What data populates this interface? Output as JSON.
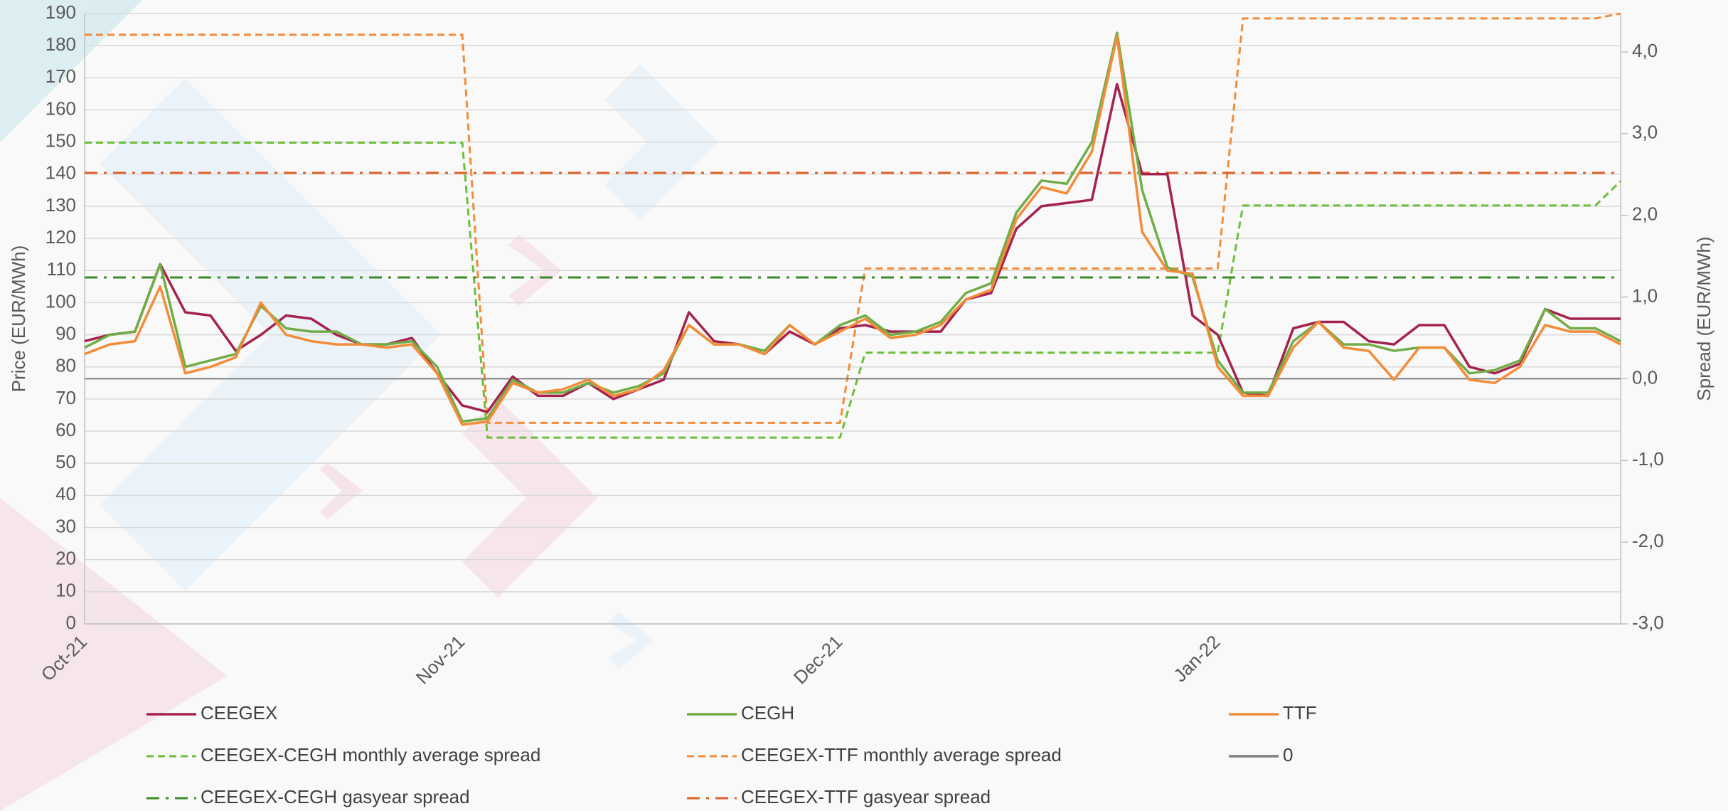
{
  "chart_data": {
    "type": "line",
    "y_label": "Price (EUR/MWh)",
    "y2_label": "Spread (EUR/MWh)",
    "categories": [
      "Oct-21",
      null,
      null,
      null,
      null,
      null,
      null,
      null,
      null,
      null,
      null,
      null,
      null,
      null,
      null,
      "Nov-21",
      null,
      null,
      null,
      null,
      null,
      null,
      null,
      null,
      null,
      null,
      null,
      null,
      null,
      null,
      "Dec-21",
      null,
      null,
      null,
      null,
      null,
      null,
      null,
      null,
      null,
      null,
      null,
      null,
      null,
      null,
      "Jan-22",
      null,
      null,
      null,
      null,
      null,
      null,
      null,
      null,
      null,
      null,
      null,
      null,
      null,
      null,
      null,
      null
    ],
    "ylim": [
      0,
      190
    ],
    "yticks": [
      0,
      10,
      20,
      30,
      40,
      50,
      60,
      70,
      80,
      90,
      100,
      110,
      120,
      130,
      140,
      150,
      160,
      170,
      180,
      190
    ],
    "y2lim": [
      -3,
      4.47
    ],
    "y2ticks": [
      {
        "value": -3,
        "label": "-3,0"
      },
      {
        "value": -2,
        "label": "-2,0"
      },
      {
        "value": -1,
        "label": "-1,0"
      },
      {
        "value": 0,
        "label": "0,0"
      },
      {
        "value": 1,
        "label": "1,0"
      },
      {
        "value": 2,
        "label": "2,0"
      },
      {
        "value": 3,
        "label": "3,0"
      },
      {
        "value": 4,
        "label": "4,0"
      }
    ],
    "grid": true,
    "legend": "bottom",
    "series": [
      {
        "name": "CEEGEX",
        "color": "#a4224e",
        "line_style": "solid",
        "values": [
          88,
          90,
          91,
          112,
          97,
          96,
          85,
          90,
          96,
          95,
          90,
          87,
          87,
          89,
          78,
          68,
          66,
          77,
          71,
          71,
          75,
          70,
          73,
          76,
          97,
          88,
          87,
          84,
          91,
          87,
          92,
          93,
          91,
          91,
          91,
          101,
          103,
          123,
          130,
          131,
          132,
          168,
          140,
          140,
          96,
          90,
          72,
          71,
          92,
          94,
          94,
          88,
          87,
          93,
          93,
          80,
          78,
          81,
          98,
          95,
          95,
          95
        ]
      },
      {
        "name": "CEGH",
        "color": "#70ad47",
        "line_style": "solid",
        "values": [
          86,
          90,
          91,
          112,
          80,
          82,
          84,
          99,
          92,
          91,
          91,
          87,
          87,
          88,
          80,
          63,
          64,
          76,
          72,
          72,
          75,
          72,
          74,
          78,
          93,
          87,
          87,
          85,
          93,
          87,
          93,
          96,
          90,
          91,
          94,
          103,
          106,
          128,
          138,
          137,
          150,
          184,
          135,
          111,
          108,
          82,
          72,
          72,
          88,
          94,
          87,
          87,
          85,
          86,
          86,
          78,
          79,
          82,
          98,
          92,
          92,
          88
        ]
      },
      {
        "name": "TTF",
        "color": "#f28c38",
        "line_style": "solid",
        "values": [
          84,
          87,
          88,
          105,
          78,
          80,
          83,
          100,
          90,
          88,
          87,
          87,
          86,
          87,
          78,
          62,
          63,
          75,
          72,
          73,
          76,
          71,
          73,
          79,
          93,
          87,
          87,
          84,
          93,
          87,
          91,
          95,
          89,
          90,
          93,
          101,
          104,
          126,
          136,
          134,
          147,
          183,
          122,
          110,
          109,
          80,
          71,
          71,
          86,
          94,
          86,
          85,
          76,
          86,
          86,
          76,
          75,
          80,
          93,
          91,
          91,
          87
        ]
      },
      {
        "name": "CEEGEX-CEGH monthly average spread",
        "color": "#6cbf3a",
        "line_style": "dashed",
        "axis": "y2",
        "values": [
          2.89,
          2.89,
          2.89,
          2.89,
          2.89,
          2.89,
          2.89,
          2.89,
          2.89,
          2.89,
          2.89,
          2.89,
          2.89,
          2.89,
          2.89,
          2.89,
          -0.72,
          -0.72,
          -0.72,
          -0.72,
          -0.72,
          -0.72,
          -0.72,
          -0.72,
          -0.72,
          -0.72,
          -0.72,
          -0.72,
          -0.72,
          -0.72,
          -0.72,
          0.32,
          0.32,
          0.32,
          0.32,
          0.32,
          0.32,
          0.32,
          0.32,
          0.32,
          0.32,
          0.32,
          0.32,
          0.32,
          0.32,
          0.32,
          2.12,
          2.12,
          2.12,
          2.12,
          2.12,
          2.12,
          2.12,
          2.12,
          2.12,
          2.12,
          2.12,
          2.12,
          2.12,
          2.12,
          2.12,
          2.42
        ]
      },
      {
        "name": "CEEGEX-TTF monthly average spread",
        "color": "#f28c38",
        "line_style": "dashed",
        "axis": "y2",
        "values": [
          4.21,
          4.21,
          4.21,
          4.21,
          4.21,
          4.21,
          4.21,
          4.21,
          4.21,
          4.21,
          4.21,
          4.21,
          4.21,
          4.21,
          4.21,
          4.21,
          -0.54,
          -0.54,
          -0.54,
          -0.54,
          -0.54,
          -0.54,
          -0.54,
          -0.54,
          -0.54,
          -0.54,
          -0.54,
          -0.54,
          -0.54,
          -0.54,
          -0.54,
          1.35,
          1.35,
          1.35,
          1.35,
          1.35,
          1.35,
          1.35,
          1.35,
          1.35,
          1.35,
          1.35,
          1.35,
          1.35,
          1.35,
          1.35,
          4.41,
          4.41,
          4.41,
          4.41,
          4.41,
          4.41,
          4.41,
          4.41,
          4.41,
          4.41,
          4.41,
          4.41,
          4.41,
          4.41,
          4.41,
          4.47
        ]
      },
      {
        "name": "0",
        "color": "#808080",
        "line_style": "solid",
        "axis": "y2",
        "values": [
          0,
          0,
          0,
          0,
          0,
          0,
          0,
          0,
          0,
          0,
          0,
          0,
          0,
          0,
          0,
          0,
          0,
          0,
          0,
          0,
          0,
          0,
          0,
          0,
          0,
          0,
          0,
          0,
          0,
          0,
          0,
          0,
          0,
          0,
          0,
          0,
          0,
          0,
          0,
          0,
          0,
          0,
          0,
          0,
          0,
          0,
          0,
          0,
          0,
          0,
          0,
          0,
          0,
          0,
          0,
          0,
          0,
          0,
          0,
          0,
          0,
          0
        ]
      },
      {
        "name": "CEEGEX-CEGH gasyear spread",
        "color": "#3d8a2a",
        "line_style": "dashdot",
        "axis": "y2",
        "values": [
          1.24,
          1.24,
          1.24,
          1.24,
          1.24,
          1.24,
          1.24,
          1.24,
          1.24,
          1.24,
          1.24,
          1.24,
          1.24,
          1.24,
          1.24,
          1.24,
          1.24,
          1.24,
          1.24,
          1.24,
          1.24,
          1.24,
          1.24,
          1.24,
          1.24,
          1.24,
          1.24,
          1.24,
          1.24,
          1.24,
          1.24,
          1.24,
          1.24,
          1.24,
          1.24,
          1.24,
          1.24,
          1.24,
          1.24,
          1.24,
          1.24,
          1.24,
          1.24,
          1.24,
          1.24,
          1.24,
          1.24,
          1.24,
          1.24,
          1.24,
          1.24,
          1.24,
          1.24,
          1.24,
          1.24,
          1.24,
          1.24,
          1.24,
          1.24,
          1.24,
          1.24,
          1.24
        ]
      },
      {
        "name": "CEEGEX-TTF gasyear spread",
        "color": "#e0602a",
        "line_style": "dashdot",
        "axis": "y2",
        "values": [
          2.52,
          2.52,
          2.52,
          2.52,
          2.52,
          2.52,
          2.52,
          2.52,
          2.52,
          2.52,
          2.52,
          2.52,
          2.52,
          2.52,
          2.52,
          2.52,
          2.52,
          2.52,
          2.52,
          2.52,
          2.52,
          2.52,
          2.52,
          2.52,
          2.52,
          2.52,
          2.52,
          2.52,
          2.52,
          2.52,
          2.52,
          2.52,
          2.52,
          2.52,
          2.52,
          2.52,
          2.52,
          2.52,
          2.52,
          2.52,
          2.52,
          2.52,
          2.52,
          2.52,
          2.52,
          2.52,
          2.52,
          2.52,
          2.52,
          2.52,
          2.52,
          2.52,
          2.52,
          2.52,
          2.52,
          2.52,
          2.52,
          2.52,
          2.52,
          2.52,
          2.52,
          2.52
        ]
      }
    ]
  }
}
